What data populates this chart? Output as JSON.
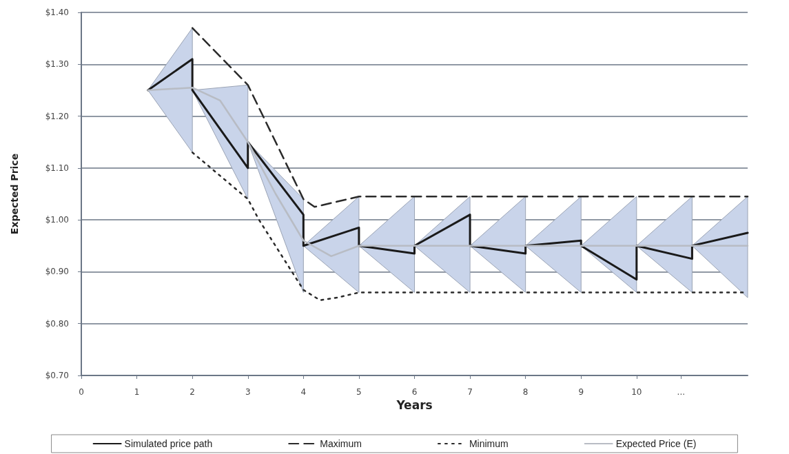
{
  "chart_data": {
    "type": "line",
    "xlabel": "Years",
    "ylabel": "Expected Price",
    "xlim": [
      0,
      12
    ],
    "xticks": [
      0,
      1,
      2,
      3,
      4,
      5,
      6,
      7,
      8,
      9,
      10,
      {
        "value": 10.8,
        "label": "..."
      }
    ],
    "ylim": [
      0.7,
      1.4
    ],
    "yticks": [
      {
        "value": 0.7,
        "label": "$0.70"
      },
      {
        "value": 0.8,
        "label": "$0.80"
      },
      {
        "value": 0.9,
        "label": "$0.90"
      },
      {
        "value": 1.0,
        "label": "$1.00"
      },
      {
        "value": 1.1,
        "label": "$1.10"
      },
      {
        "value": 1.2,
        "label": "$1.20"
      },
      {
        "value": 1.3,
        "label": "$1.30"
      },
      {
        "value": 1.4,
        "label": "$1.40"
      }
    ],
    "grid": "y",
    "legend": "bottom",
    "series": [
      {
        "name": "Simulated price path",
        "color": "#1a1a1a",
        "line_style": "solid",
        "x": [
          1.2,
          2,
          2,
          3,
          3,
          4,
          4,
          5,
          5,
          6,
          6,
          7,
          7,
          8,
          8,
          9,
          9,
          10,
          10,
          11,
          11,
          12
        ],
        "values": [
          1.25,
          1.31,
          1.25,
          1.1,
          1.15,
          1.01,
          0.95,
          0.985,
          0.95,
          0.935,
          0.95,
          1.01,
          0.95,
          0.935,
          0.95,
          0.96,
          0.95,
          0.885,
          0.95,
          0.925,
          0.95,
          0.975
        ],
        "lower": [
          1.25,
          1.13,
          1.25,
          1.04,
          1.15,
          0.86,
          0.95,
          0.86,
          0.95,
          0.86,
          0.95,
          0.86,
          0.95,
          0.86,
          0.95,
          0.86,
          0.95,
          0.86,
          0.95,
          0.86,
          0.95,
          0.85
        ],
        "upper": [
          1.25,
          1.37,
          1.25,
          1.26,
          1.15,
          1.04,
          0.95,
          1.045,
          0.95,
          1.045,
          0.95,
          1.045,
          0.95,
          1.045,
          0.95,
          1.045,
          0.95,
          1.045,
          0.95,
          1.045,
          0.95,
          1.045
        ]
      },
      {
        "name": "Maximum",
        "color": "#2a2a2a",
        "line_style": "dashed",
        "x": [
          2,
          3,
          4,
          4.2,
          4.6,
          5,
          12
        ],
        "values": [
          1.37,
          1.26,
          1.04,
          1.025,
          1.035,
          1.045,
          1.045
        ]
      },
      {
        "name": "Minimum",
        "color": "#2a2a2a",
        "line_style": "dotted",
        "x": [
          2,
          3,
          3.2,
          4,
          4.3,
          4.6,
          5,
          12
        ],
        "values": [
          1.13,
          1.04,
          1.0,
          0.865,
          0.845,
          0.85,
          0.86,
          0.86
        ]
      },
      {
        "name": "Expected Price (E)",
        "color": "#b8bcc4",
        "line_style": "solid",
        "x": [
          1.2,
          2,
          2.5,
          3,
          3.5,
          4,
          4.5,
          5,
          12
        ],
        "values": [
          1.25,
          1.255,
          1.23,
          1.15,
          1.05,
          0.96,
          0.93,
          0.95,
          0.95
        ]
      }
    ]
  }
}
